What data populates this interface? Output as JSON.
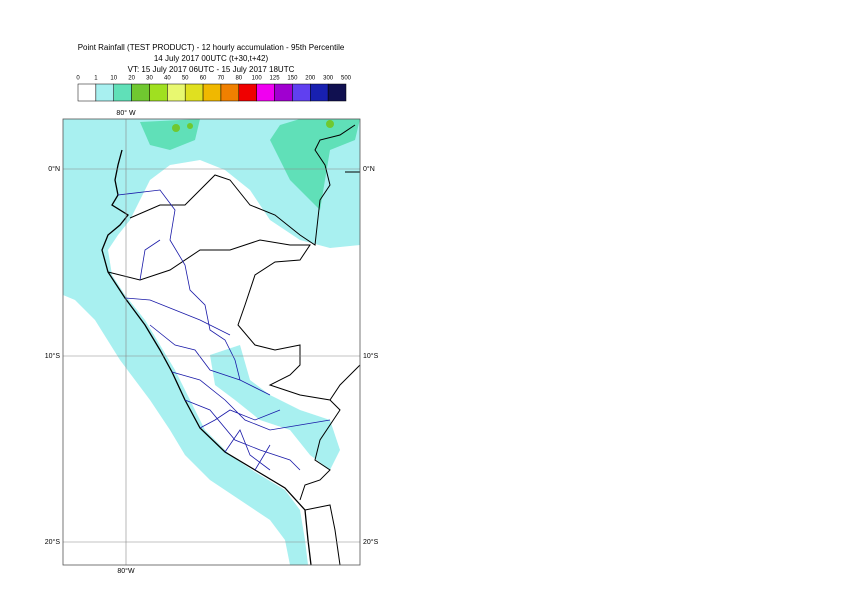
{
  "header": {
    "title": [
      "Point Rainfall (TEST PRODUCT) - 12 hourly accumulation - 95th Percentile",
      "14 July 2017 00UTC (t+30,t+42)",
      "VT: 15 July 2017 06UTC - 15 July 2017 18UTC"
    ]
  },
  "legend": {
    "labels": [
      "0",
      "1",
      "10",
      "20",
      "30",
      "40",
      "50",
      "60",
      "70",
      "80",
      "100",
      "125",
      "150",
      "200",
      "300",
      "500"
    ],
    "colors": [
      "#ffffff",
      "#a8f0f0",
      "#60e0b8",
      "#70c830",
      "#a0e020",
      "#e8f870",
      "#e0e020",
      "#f0b800",
      "#f08000",
      "#f00000",
      "#f000f0",
      "#a000d0",
      "#6040f0",
      "#1820b0",
      "#101050"
    ]
  },
  "map": {
    "lon_label_top": "80° W",
    "lon_label_bottom": "80°W",
    "lat_labels": [
      "0°N",
      "10°S",
      "20°S"
    ]
  }
}
